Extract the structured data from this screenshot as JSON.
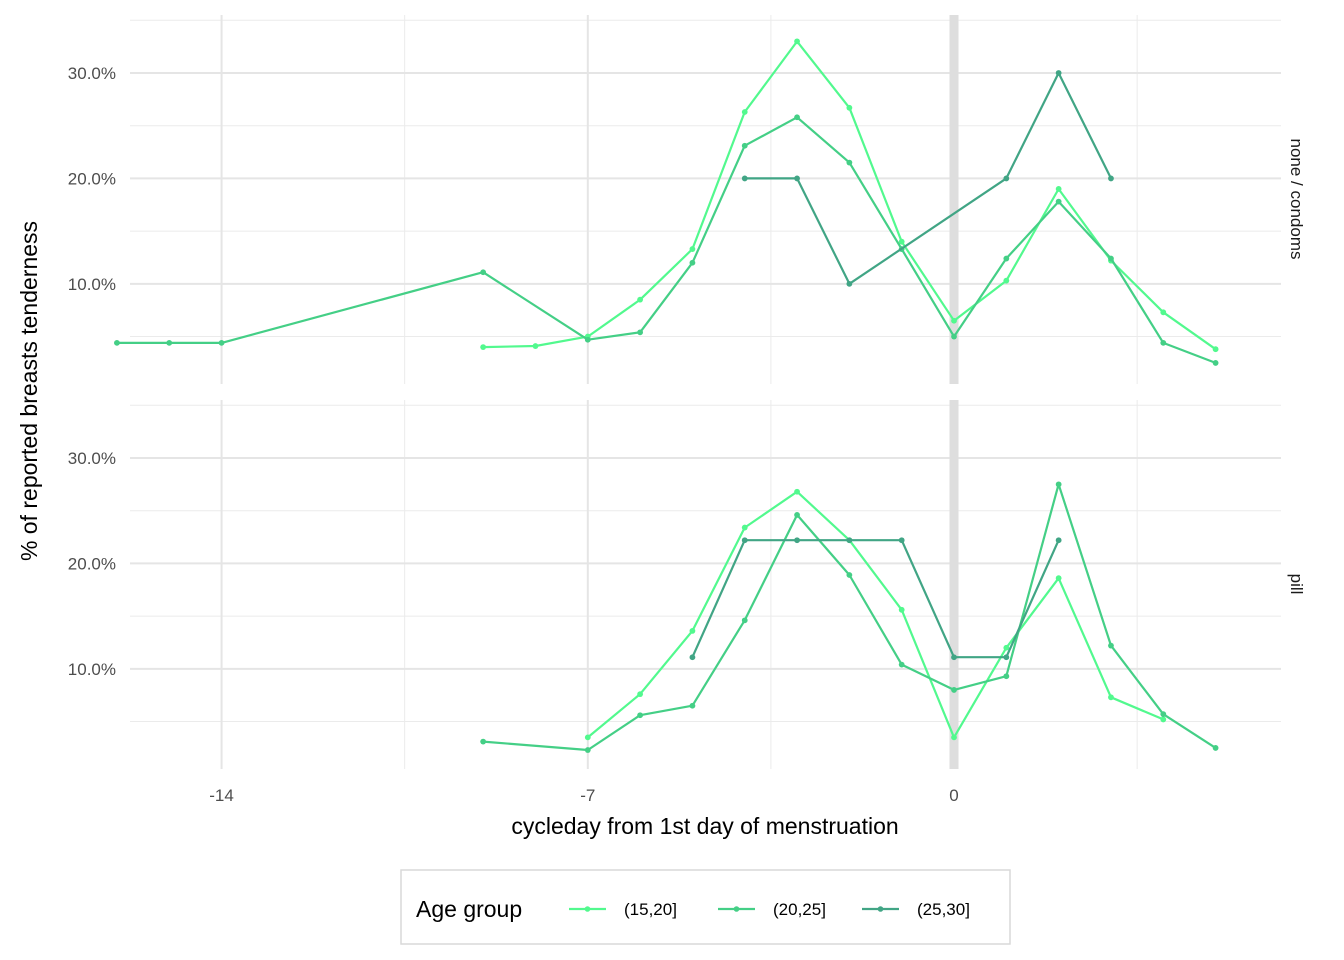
{
  "chart_data": {
    "type": "line",
    "xlabel": "cycleday from 1st day of menstruation",
    "ylabel": "% of reported breasts tenderness",
    "xlim": [
      -15.75,
      6.25
    ],
    "ylim": [
      0.005,
      0.355
    ],
    "x_ticks": [
      {
        "value": -14,
        "label": "-14"
      },
      {
        "value": -7,
        "label": "-7"
      },
      {
        "value": 0,
        "label": "0"
      }
    ],
    "x_minor_ticks": [
      -10.5,
      -3.5,
      3.5
    ],
    "y_ticks": [
      {
        "value": 0.1,
        "label": "10.0%"
      },
      {
        "value": 0.2,
        "label": "20.0%"
      },
      {
        "value": 0.3,
        "label": "30.0%"
      }
    ],
    "y_minor_ticks": [
      0.05,
      0.15,
      0.25,
      0.35
    ],
    "reference_line_x": 0,
    "grid": true,
    "legend": {
      "title": "Age group",
      "position": "bottom",
      "entries": [
        {
          "label": "(15,20]",
          "color": "#52F98E"
        },
        {
          "label": "(20,25]",
          "color": "#44CF86"
        },
        {
          "label": "(25,30]",
          "color": "#41A585"
        }
      ]
    },
    "panels": [
      {
        "strip": "none / condoms",
        "series": [
          {
            "name": "(15,20]",
            "color": "#52F98E",
            "x": [
              -9,
              -8,
              -7,
              -6,
              -5,
              -4,
              -3,
              -2,
              -1,
              0,
              1,
              2,
              3,
              4,
              5
            ],
            "y": [
              0.04,
              0.041,
              0.05,
              0.085,
              0.133,
              0.263,
              0.33,
              0.267,
              0.14,
              0.065,
              0.103,
              0.19,
              0.122,
              0.073,
              0.038
            ]
          },
          {
            "name": "(20,25]",
            "color": "#44CF86",
            "x": [
              -16,
              -15,
              -14,
              -9,
              -7,
              -6,
              -5,
              -4,
              -3,
              -2,
              -1,
              0,
              1,
              2,
              3,
              4,
              5
            ],
            "y": [
              0.044,
              0.044,
              0.044,
              0.111,
              0.047,
              0.054,
              0.12,
              0.231,
              0.258,
              0.215,
              0.133,
              0.05,
              0.124,
              0.178,
              0.124,
              0.044,
              0.025
            ]
          },
          {
            "name": "(25,30]",
            "color": "#41A585",
            "x": [
              -4,
              -3,
              -2,
              1,
              2,
              3
            ],
            "y": [
              0.2,
              0.2,
              0.1,
              0.2,
              0.3,
              0.2
            ]
          }
        ]
      },
      {
        "strip": "pill",
        "series": [
          {
            "name": "(15,20]",
            "color": "#52F98E",
            "x": [
              -7,
              -6,
              -5,
              -4,
              -3,
              -2,
              -1,
              0,
              1,
              2,
              3,
              4
            ],
            "y": [
              0.035,
              0.076,
              0.136,
              0.234,
              0.268,
              0.222,
              0.156,
              0.035,
              0.12,
              0.186,
              0.073,
              0.052
            ]
          },
          {
            "name": "(20,25]",
            "color": "#44CF86",
            "x": [
              -9,
              -7,
              -6,
              -5,
              -4,
              -3,
              -2,
              -1,
              0,
              1,
              2,
              3,
              4,
              5
            ],
            "y": [
              0.031,
              0.023,
              0.056,
              0.065,
              0.146,
              0.246,
              0.189,
              0.104,
              0.08,
              0.093,
              0.275,
              0.122,
              0.057,
              0.025
            ]
          },
          {
            "name": "(25,30]",
            "color": "#41A585",
            "x": [
              -5,
              -4,
              -3,
              -2,
              -1,
              0,
              1,
              2
            ],
            "y": [
              0.111,
              0.222,
              0.222,
              0.222,
              0.222,
              0.111,
              0.111,
              0.222
            ]
          }
        ]
      }
    ]
  }
}
